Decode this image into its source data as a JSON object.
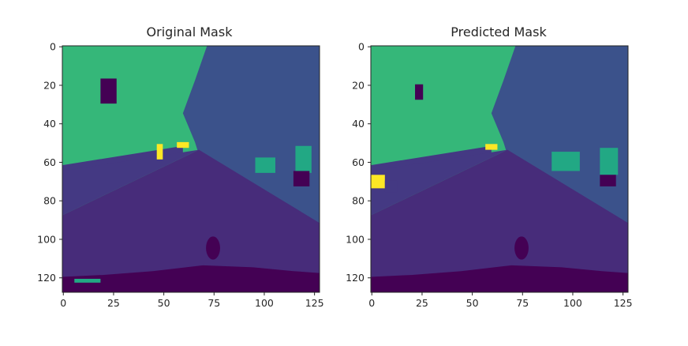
{
  "chart_data": [
    {
      "type": "heatmap",
      "title": "Original Mask",
      "xlabel": "",
      "ylabel": "",
      "xlim": [
        0,
        127
      ],
      "ylim": [
        127,
        0
      ],
      "xticks": [
        0,
        25,
        50,
        75,
        100,
        125
      ],
      "yticks": [
        0,
        20,
        40,
        60,
        80,
        100,
        120
      ],
      "grid": false,
      "colormap": "viridis",
      "image_size": [
        128,
        128
      ],
      "regions": [
        {
          "label": "sky",
          "color": "#35b779"
        },
        {
          "label": "buildings-right",
          "color": "#3b528b"
        },
        {
          "label": "road",
          "color": "#472c7a"
        },
        {
          "label": "sidewalk-left",
          "color": "#443983"
        },
        {
          "label": "vegetation",
          "color": "#22a884"
        },
        {
          "label": "car-bottom",
          "color": "#440154"
        },
        {
          "label": "sign-yellow",
          "color": "#fde725"
        }
      ]
    },
    {
      "type": "heatmap",
      "title": "Predicted Mask",
      "xlabel": "",
      "ylabel": "",
      "xlim": [
        0,
        127
      ],
      "ylim": [
        127,
        0
      ],
      "xticks": [
        0,
        25,
        50,
        75,
        100,
        125
      ],
      "yticks": [
        0,
        20,
        40,
        60,
        80,
        100,
        120
      ],
      "grid": false,
      "colormap": "viridis",
      "image_size": [
        128,
        128
      ],
      "regions": [
        {
          "label": "sky",
          "color": "#35b779"
        },
        {
          "label": "buildings-right",
          "color": "#3b528b"
        },
        {
          "label": "road",
          "color": "#472c7a"
        },
        {
          "label": "sidewalk-left",
          "color": "#443983"
        },
        {
          "label": "vegetation",
          "color": "#22a884"
        },
        {
          "label": "car-bottom",
          "color": "#440154"
        },
        {
          "label": "sign-yellow",
          "color": "#fde725"
        }
      ]
    }
  ]
}
